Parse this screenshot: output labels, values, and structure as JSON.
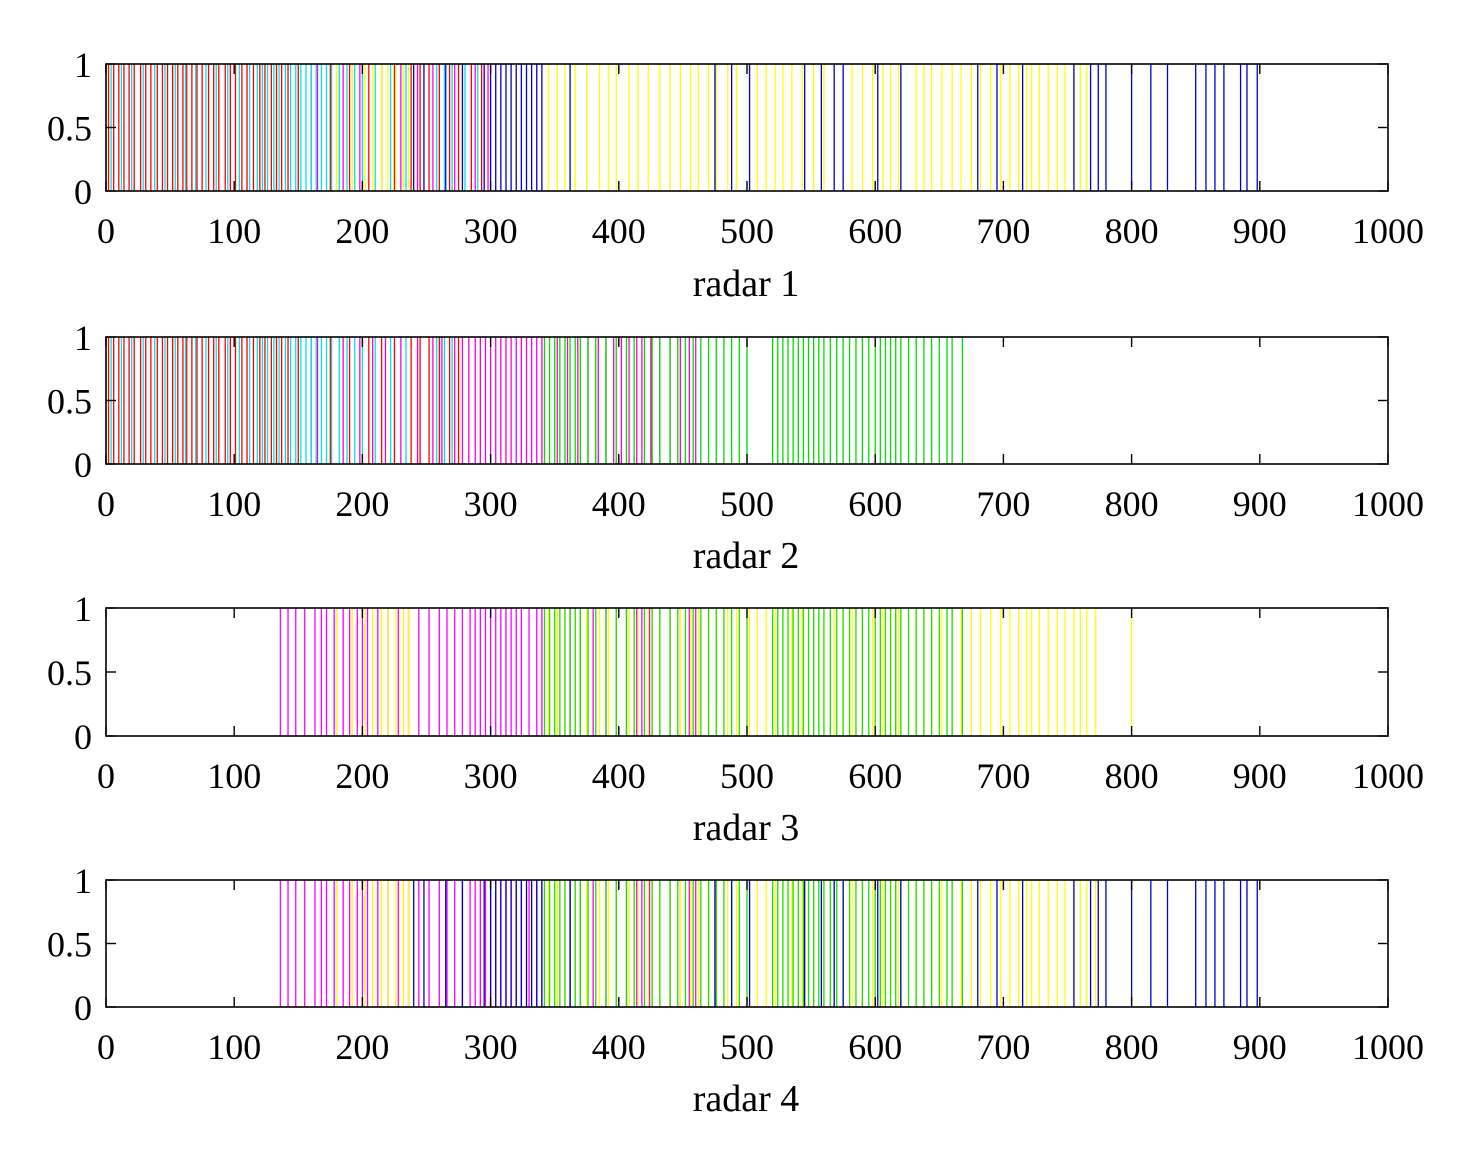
{
  "chart_data": [
    {
      "type": "bar",
      "xlabel": "radar 1",
      "xlim": [
        0,
        1000
      ],
      "ylim": [
        0,
        1
      ],
      "xticks": [
        "0",
        "100",
        "200",
        "300",
        "400",
        "500",
        "600",
        "700",
        "800",
        "900",
        "1000"
      ],
      "yticks": [
        "0",
        "0.5",
        "1"
      ],
      "series": [
        {
          "name": "red",
          "color": "#ff0000",
          "x": [
            2,
            6,
            10,
            14,
            18,
            22,
            27,
            31,
            35,
            40,
            44,
            48,
            52,
            56,
            60,
            63,
            67,
            71,
            75,
            80,
            84,
            88,
            93,
            97,
            101,
            106,
            110,
            115,
            120,
            124,
            129,
            133,
            137,
            142,
            150,
            160,
            175,
            190,
            205,
            215,
            225,
            238,
            245,
            252,
            260,
            268,
            275,
            285,
            293
          ]
        },
        {
          "name": "cyan",
          "color": "#00e5e5",
          "x": [
            4,
            12,
            20,
            29,
            38,
            46,
            54,
            62,
            70,
            78,
            86,
            95,
            104,
            112,
            118,
            122,
            126,
            131,
            135,
            140,
            144,
            148,
            152,
            156,
            160,
            164,
            168,
            172,
            176,
            182,
            188,
            194,
            200,
            210,
            222,
            234,
            258,
            264,
            270,
            280,
            290
          ]
        },
        {
          "name": "magenta",
          "color": "#ff00ff",
          "x": [
            165,
            185,
            198,
            230,
            243,
            255,
            272,
            288,
            298
          ]
        },
        {
          "name": "yellow",
          "color": "#ffff00",
          "x": [
            180,
            192,
            202,
            208,
            215,
            220,
            226,
            232,
            236,
            345,
            352,
            358,
            366,
            375,
            385,
            392,
            398,
            408,
            415,
            423,
            432,
            440,
            448,
            456,
            462,
            470,
            476,
            485,
            492,
            502,
            508,
            515,
            522,
            528,
            535,
            543,
            552,
            560,
            568,
            575,
            582,
            590,
            598,
            606,
            612,
            618,
            632,
            638,
            644,
            652,
            660,
            667,
            675,
            682,
            690,
            698,
            705,
            712,
            718,
            722,
            728,
            735,
            742,
            748,
            755,
            760,
            765
          ]
        },
        {
          "name": "blue",
          "color": "#0000cc",
          "x": [
            240,
            248,
            265,
            278,
            295,
            300,
            304,
            308,
            312,
            316,
            320,
            324,
            328,
            332,
            336,
            340,
            362,
            475,
            488,
            502,
            545,
            558,
            568,
            575,
            602,
            620,
            680,
            695,
            715,
            755,
            768,
            774,
            780,
            800,
            815,
            828,
            850,
            858,
            865,
            872,
            885,
            890,
            898
          ]
        }
      ]
    },
    {
      "type": "bar",
      "xlabel": "radar 2",
      "xlim": [
        0,
        1000
      ],
      "ylim": [
        0,
        1
      ],
      "xticks": [
        "0",
        "100",
        "200",
        "300",
        "400",
        "500",
        "600",
        "700",
        "800",
        "900",
        "1000"
      ],
      "yticks": [
        "0",
        "0.5",
        "1"
      ],
      "series": [
        {
          "name": "red",
          "color": "#ff0000",
          "x": [
            2,
            6,
            10,
            14,
            18,
            22,
            27,
            31,
            35,
            40,
            44,
            48,
            52,
            56,
            60,
            63,
            67,
            71,
            75,
            80,
            84,
            88,
            93,
            97,
            101,
            106,
            110,
            115,
            120,
            124,
            129,
            133,
            137,
            142,
            150,
            160,
            175,
            190,
            205,
            215,
            225,
            238,
            245,
            252,
            260,
            268,
            275
          ]
        },
        {
          "name": "cyan",
          "color": "#00e5e5",
          "x": [
            4,
            12,
            20,
            29,
            38,
            46,
            54,
            62,
            70,
            78,
            86,
            95,
            104,
            112,
            118,
            122,
            126,
            131,
            135,
            140,
            144,
            148,
            152,
            156,
            160,
            164,
            168,
            172,
            176,
            182,
            188,
            194,
            200,
            210,
            222,
            234,
            258,
            264,
            270
          ]
        },
        {
          "name": "magenta",
          "color": "#ff00cc",
          "x": [
            165,
            185,
            198,
            208,
            218,
            230,
            243,
            255,
            262,
            272,
            278,
            283,
            288,
            292,
            296,
            300,
            304,
            308,
            312,
            316,
            320,
            324,
            328,
            332,
            336,
            340,
            352,
            360,
            368,
            376,
            384,
            390,
            396,
            402,
            408,
            414,
            418,
            425,
            432,
            440,
            448,
            455,
            460
          ]
        },
        {
          "name": "green",
          "color": "#00dd00",
          "x": [
            342,
            346,
            350,
            354,
            358,
            362,
            366,
            370,
            376,
            382,
            390,
            398,
            406,
            412,
            420,
            426,
            432,
            440,
            446,
            452,
            458,
            464,
            470,
            476,
            482,
            488,
            494,
            500,
            520,
            524,
            528,
            532,
            536,
            540,
            544,
            548,
            552,
            556,
            560,
            565,
            570,
            575,
            580,
            585,
            590,
            595,
            600,
            604,
            608,
            612,
            616,
            620,
            626,
            632,
            638,
            644,
            650,
            656,
            660,
            668
          ]
        }
      ]
    },
    {
      "type": "bar",
      "xlabel": "radar 3",
      "xlim": [
        0,
        1000
      ],
      "ylim": [
        0,
        1
      ],
      "xticks": [
        "0",
        "100",
        "200",
        "300",
        "400",
        "500",
        "600",
        "700",
        "800",
        "900",
        "1000"
      ],
      "yticks": [
        "0",
        "0.5",
        "1"
      ],
      "series": [
        {
          "name": "magenta",
          "color": "#ff00ff",
          "x": [
            136,
            142,
            148,
            155,
            163,
            168,
            172,
            178,
            185,
            190,
            196,
            200,
            204,
            212,
            220,
            228,
            236,
            244,
            252,
            260,
            266,
            272,
            278,
            284,
            288,
            292,
            296,
            300,
            304,
            308,
            312,
            316,
            320,
            324,
            330,
            336,
            340,
            352,
            362,
            370,
            380,
            390,
            398,
            406,
            414,
            418,
            424,
            432,
            440,
            448,
            455,
            460
          ]
        },
        {
          "name": "yellow",
          "color": "#ffff00",
          "x": [
            180,
            192,
            202,
            208,
            215,
            220,
            226,
            232,
            236,
            345,
            352,
            358,
            366,
            375,
            385,
            392,
            398,
            408,
            415,
            423,
            432,
            440,
            448,
            456,
            462,
            470,
            476,
            485,
            492,
            502,
            508,
            515,
            522,
            528,
            535,
            543,
            552,
            560,
            568,
            575,
            582,
            590,
            598,
            606,
            612,
            618,
            632,
            638,
            644,
            652,
            660,
            667,
            675,
            682,
            690,
            698,
            705,
            712,
            718,
            722,
            728,
            735,
            742,
            748,
            755,
            760,
            765,
            772,
            800
          ]
        },
        {
          "name": "green",
          "color": "#22dd00",
          "x": [
            342,
            346,
            350,
            354,
            358,
            362,
            366,
            370,
            376,
            382,
            390,
            398,
            406,
            412,
            420,
            426,
            432,
            440,
            446,
            452,
            458,
            464,
            470,
            476,
            482,
            488,
            494,
            500,
            520,
            524,
            528,
            532,
            536,
            540,
            544,
            548,
            552,
            556,
            560,
            565,
            570,
            575,
            580,
            585,
            590,
            595,
            600,
            604,
            608,
            612,
            616,
            620,
            626,
            632,
            638,
            644,
            650,
            656,
            660,
            668
          ]
        }
      ]
    },
    {
      "type": "bar",
      "xlabel": "radar 4",
      "xlim": [
        0,
        1000
      ],
      "ylim": [
        0,
        1
      ],
      "xticks": [
        "0",
        "100",
        "200",
        "300",
        "400",
        "500",
        "600",
        "700",
        "800",
        "900",
        "1000"
      ],
      "yticks": [
        "0",
        "0.5",
        "1"
      ],
      "series": [
        {
          "name": "magenta",
          "color": "#ff00ff",
          "x": [
            136,
            142,
            148,
            155,
            163,
            168,
            172,
            178,
            185,
            190,
            196,
            200,
            204,
            212,
            220,
            228,
            236,
            244,
            252,
            260,
            266,
            272,
            278,
            284,
            288,
            292,
            296,
            300,
            304,
            308,
            312,
            316,
            320,
            324,
            330,
            336,
            340,
            352,
            362,
            370,
            380,
            390,
            398,
            406,
            414,
            418,
            424,
            432,
            440,
            448,
            455,
            460
          ]
        },
        {
          "name": "yellow",
          "color": "#ffff00",
          "x": [
            180,
            192,
            202,
            208,
            215,
            220,
            226,
            232,
            236,
            345,
            352,
            358,
            366,
            375,
            385,
            392,
            398,
            408,
            415,
            423,
            432,
            440,
            448,
            456,
            462,
            470,
            476,
            485,
            492,
            502,
            508,
            515,
            522,
            528,
            535,
            543,
            552,
            560,
            568,
            575,
            582,
            590,
            598,
            606,
            612,
            618,
            632,
            638,
            644,
            652,
            660,
            667,
            675,
            682,
            690,
            698,
            705,
            712,
            718,
            722,
            728,
            735,
            742,
            748,
            755,
            760,
            765,
            772,
            800
          ]
        },
        {
          "name": "green",
          "color": "#22dd00",
          "x": [
            342,
            346,
            350,
            354,
            358,
            362,
            366,
            370,
            376,
            382,
            390,
            398,
            406,
            412,
            420,
            426,
            432,
            440,
            446,
            452,
            458,
            464,
            470,
            476,
            482,
            488,
            494,
            500,
            520,
            524,
            528,
            532,
            536,
            540,
            544,
            548,
            552,
            556,
            560,
            565,
            570,
            575,
            580,
            585,
            590,
            595,
            600,
            604,
            608,
            612,
            616,
            620,
            626,
            632,
            638,
            644,
            650,
            656,
            660,
            668
          ]
        },
        {
          "name": "blue",
          "color": "#0000cc",
          "x": [
            240,
            248,
            265,
            278,
            295,
            300,
            304,
            308,
            312,
            316,
            320,
            324,
            328,
            332,
            336,
            340,
            362,
            475,
            488,
            502,
            545,
            558,
            568,
            575,
            602,
            620,
            680,
            695,
            715,
            755,
            768,
            774,
            780,
            800,
            815,
            828,
            850,
            858,
            865,
            872,
            885,
            890,
            898
          ]
        }
      ]
    }
  ]
}
